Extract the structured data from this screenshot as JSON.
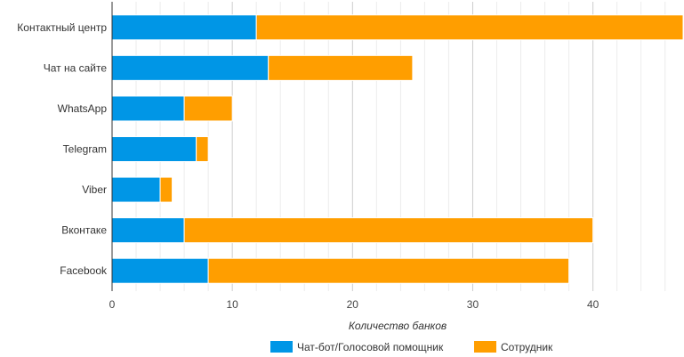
{
  "chart_data": {
    "type": "bar",
    "orientation": "horizontal",
    "stacked": true,
    "categories": [
      "Контактный центр",
      "Чат на сайте",
      "WhatsApp",
      "Telegram",
      "Viber",
      "Вконтаке",
      "Facebook"
    ],
    "series": [
      {
        "name": "Чат-бот/Голосовой помощник",
        "color": "#0096e6",
        "values": [
          12,
          13,
          6,
          7,
          4,
          6,
          8
        ]
      },
      {
        "name": "Сотрудник",
        "color": "#ff9e00",
        "values": [
          35.5,
          12,
          4,
          1,
          1,
          34,
          30
        ]
      }
    ],
    "xlabel": "Количество банков",
    "ylabel": "",
    "xlim": [
      0,
      47.5
    ],
    "xticks": [
      0,
      10,
      20,
      30,
      40
    ],
    "grid": true,
    "legend_position": "bottom"
  }
}
